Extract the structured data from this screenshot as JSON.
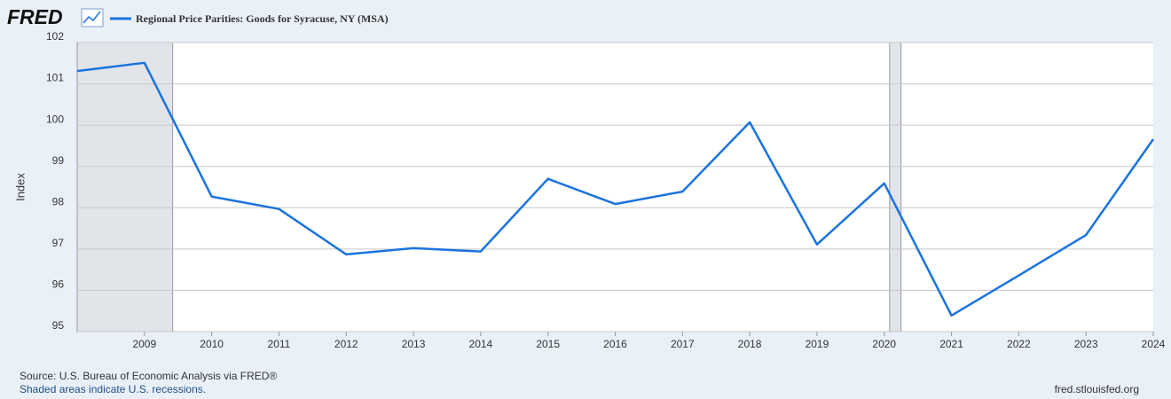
{
  "chart_data": {
    "type": "line",
    "logo": "FRED",
    "y_label": "Index",
    "source": "Source: U.S. Bureau of Economic Analysis via FRED®",
    "note": "Shaded areas indicate U.S. recessions.",
    "url": "fred.stlouisfed.org",
    "x": [
      2008,
      2009,
      2010,
      2011,
      2012,
      2013,
      2014,
      2015,
      2016,
      2017,
      2018,
      2019,
      2020,
      2021,
      2022,
      2023,
      2024
    ],
    "series": [
      {
        "name": "Regional Price Parities: Goods for Syracuse, NY (MSA)",
        "color": "#1a73e0",
        "values": [
          101.31,
          101.51,
          98.27,
          97.97,
          96.87,
          97.02,
          96.94,
          98.7,
          98.09,
          98.39,
          100.07,
          97.11,
          98.59,
          95.39,
          96.36,
          97.34,
          99.66
        ]
      }
    ],
    "recessions": [
      [
        2008,
        2009.42
      ],
      [
        2020.08,
        2020.25
      ]
    ],
    "recession_color": "#e1e5ea",
    "xlim": [
      2008,
      2024
    ],
    "xticks": [
      2009,
      2010,
      2011,
      2012,
      2013,
      2014,
      2015,
      2016,
      2017,
      2018,
      2019,
      2020,
      2021,
      2022,
      2023,
      2024
    ],
    "ylim": [
      95,
      102
    ],
    "yticks": [
      95,
      96,
      97,
      98,
      99,
      100,
      101,
      102
    ],
    "grid": true
  }
}
